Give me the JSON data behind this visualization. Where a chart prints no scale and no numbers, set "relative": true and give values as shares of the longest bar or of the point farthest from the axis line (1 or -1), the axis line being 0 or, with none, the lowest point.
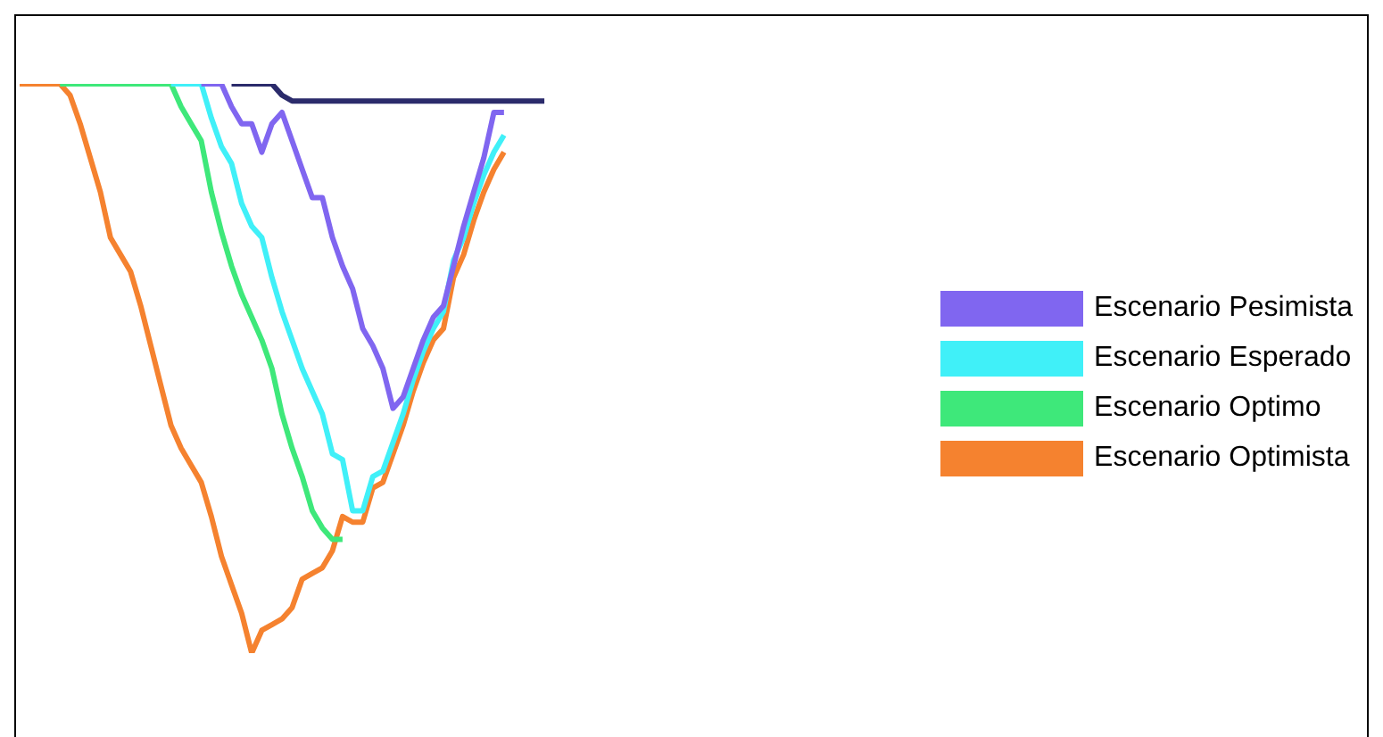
{
  "chart_data": {
    "type": "line",
    "relative": true,
    "legend": "right",
    "grid": false,
    "marker": "none",
    "line_style": "solid",
    "categories": [
      null,
      null,
      null,
      null,
      null,
      null,
      null,
      null,
      null,
      null,
      null,
      null,
      null,
      null,
      null,
      null,
      null,
      null,
      null,
      null,
      null,
      null,
      null,
      null,
      null,
      null,
      null,
      null,
      null,
      null,
      null,
      null,
      null,
      null,
      null,
      null,
      null,
      null,
      null,
      null,
      null,
      null,
      null,
      null,
      null,
      null,
      null,
      null,
      null,
      null,
      null,
      null,
      null
    ],
    "series": [
      {
        "name": "Escenario Optimista",
        "color": "#f5822f",
        "values": [
          1,
          1,
          1,
          1,
          1,
          0.98,
          0.93,
          0.87,
          0.81,
          0.73,
          0.7,
          0.67,
          0.61,
          0.54,
          0.47,
          0.4,
          0.36,
          0.33,
          0.3,
          0.24,
          0.17,
          0.12,
          0.07,
          0,
          0.04,
          0.05,
          0.06,
          0.08,
          0.13,
          0.14,
          0.15,
          0.18,
          0.24,
          0.23,
          0.23,
          0.29,
          0.3,
          0.35,
          0.4,
          0.46,
          0.51,
          0.55,
          0.57,
          0.66,
          0.7,
          0.76,
          0.81,
          0.85,
          0.88,
          null,
          null,
          null,
          null
        ]
      },
      {
        "name": "Escenario Optimo",
        "color": "#3ee87a",
        "values": [
          null,
          null,
          null,
          null,
          1,
          1,
          1,
          1,
          1,
          1,
          1,
          1,
          1,
          1,
          1,
          1,
          0.96,
          0.93,
          0.9,
          0.81,
          0.74,
          0.68,
          0.63,
          0.59,
          0.55,
          0.5,
          0.42,
          0.36,
          0.31,
          0.25,
          0.22,
          0.2,
          0.2,
          null,
          null,
          null,
          null,
          null,
          null,
          null,
          null,
          null,
          null,
          null,
          null,
          null,
          null,
          null,
          null,
          null,
          null,
          null,
          null
        ]
      },
      {
        "name": "Escenario Esperado",
        "color": "#40f0f8",
        "values": [
          null,
          null,
          null,
          null,
          null,
          null,
          null,
          null,
          null,
          null,
          null,
          null,
          null,
          null,
          null,
          1,
          1,
          1,
          1,
          0.94,
          0.89,
          0.86,
          0.79,
          0.75,
          0.73,
          0.66,
          0.6,
          0.55,
          0.5,
          0.46,
          0.42,
          0.35,
          0.34,
          0.25,
          0.25,
          0.31,
          0.32,
          0.37,
          0.42,
          0.48,
          0.53,
          0.57,
          0.6,
          0.69,
          0.73,
          0.79,
          0.84,
          0.88,
          0.91,
          null,
          null,
          null,
          null
        ]
      },
      {
        "name": "Escenario Pesimista",
        "color": "#8066f0",
        "values": [
          null,
          null,
          null,
          null,
          null,
          null,
          null,
          null,
          null,
          null,
          null,
          null,
          null,
          null,
          null,
          null,
          null,
          null,
          1,
          1,
          1,
          0.96,
          0.93,
          0.93,
          0.88,
          0.93,
          0.95,
          0.9,
          0.85,
          0.8,
          0.8,
          0.73,
          0.68,
          0.64,
          0.57,
          0.54,
          0.5,
          0.43,
          0.45,
          0.5,
          0.55,
          0.59,
          0.61,
          0.68,
          0.75,
          0.81,
          0.87,
          0.95,
          0.95,
          null,
          null,
          null,
          null
        ]
      },
      {
        "color": "#2b2b6b",
        "values": [
          null,
          null,
          null,
          null,
          null,
          null,
          null,
          null,
          null,
          null,
          null,
          null,
          null,
          null,
          null,
          null,
          null,
          null,
          null,
          null,
          null,
          1,
          1,
          1,
          1,
          1,
          0.98,
          0.97,
          0.97,
          0.97,
          0.97,
          0.97,
          0.97,
          0.97,
          0.97,
          0.97,
          0.97,
          0.97,
          0.97,
          0.97,
          0.97,
          0.97,
          0.97,
          0.97,
          0.97,
          0.97,
          0.97,
          0.97,
          0.97,
          0.97,
          0.97,
          0.97,
          0.97
        ]
      }
    ]
  }
}
